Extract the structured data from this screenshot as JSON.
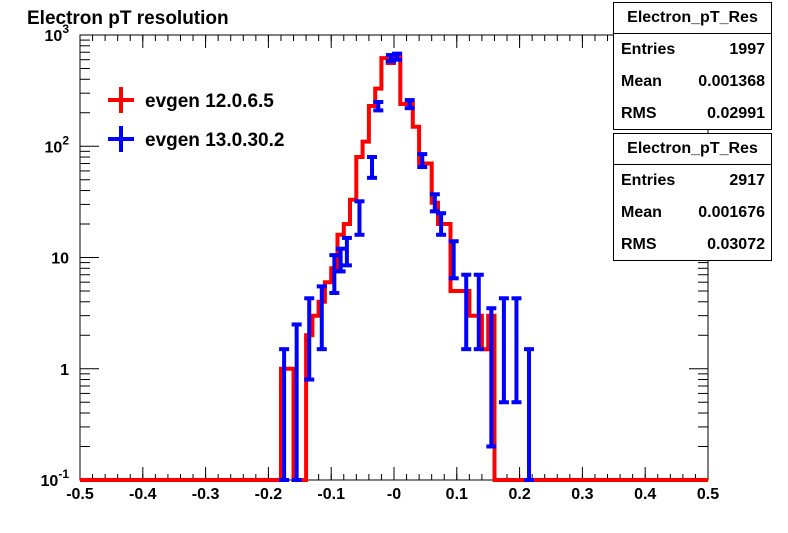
{
  "title": "Electron pT resolution",
  "colors": {
    "red": "#ff0000",
    "blue": "#0000ff",
    "frame": "#000000"
  },
  "stat_boxes": [
    {
      "title": "Electron_pT_Res",
      "rows": [
        {
          "label": "Entries",
          "value": "1997"
        },
        {
          "label": "Mean",
          "value": "0.001368"
        },
        {
          "label": "RMS",
          "value": "0.02991"
        }
      ]
    },
    {
      "title": "Electron_pT_Res",
      "rows": [
        {
          "label": "Entries",
          "value": "2917"
        },
        {
          "label": "Mean",
          "value": "0.001676"
        },
        {
          "label": "RMS",
          "value": "0.03072"
        }
      ]
    }
  ],
  "chart_data": {
    "type": "histogram",
    "title": "Electron pT resolution",
    "xlim": [
      -0.5,
      0.5
    ],
    "ylim": [
      0.1,
      1000
    ],
    "yscale": "log",
    "grid": false,
    "legend_position": "top-left",
    "xticks": [
      {
        "value": -0.5,
        "label": "-0.5"
      },
      {
        "value": -0.4,
        "label": "-0.4"
      },
      {
        "value": -0.3,
        "label": "-0.3"
      },
      {
        "value": -0.2,
        "label": "-0.2"
      },
      {
        "value": -0.1,
        "label": "-0.1"
      },
      {
        "value": 0,
        "label": "-0"
      },
      {
        "value": 0.1,
        "label": "0.1"
      },
      {
        "value": 0.2,
        "label": "0.2"
      },
      {
        "value": 0.3,
        "label": "0.3"
      },
      {
        "value": 0.4,
        "label": "0.4"
      },
      {
        "value": 0.5,
        "label": "0.5"
      }
    ],
    "yticks": [
      {
        "value": 0.1,
        "base": "10",
        "exp": "-1"
      },
      {
        "value": 1,
        "base": "1",
        "exp": ""
      },
      {
        "value": 10,
        "base": "10",
        "exp": ""
      },
      {
        "value": 100,
        "base": "10",
        "exp": "2"
      },
      {
        "value": 1000,
        "base": "10",
        "exp": "3"
      }
    ],
    "series": [
      {
        "name": "evgen 12.0.6.5",
        "color": "#ff0000",
        "style": "step",
        "bins": [
          {
            "lo": -0.5,
            "hi": -0.18,
            "y": 0.1
          },
          {
            "lo": -0.18,
            "hi": -0.16,
            "y": 1
          },
          {
            "lo": -0.16,
            "hi": -0.14,
            "y": 0.1
          },
          {
            "lo": -0.14,
            "hi": -0.13,
            "y": 2
          },
          {
            "lo": -0.13,
            "hi": -0.12,
            "y": 3
          },
          {
            "lo": -0.12,
            "hi": -0.11,
            "y": 4
          },
          {
            "lo": -0.11,
            "hi": -0.1,
            "y": 6
          },
          {
            "lo": -0.1,
            "hi": -0.09,
            "y": 8
          },
          {
            "lo": -0.09,
            "hi": -0.08,
            "y": 16
          },
          {
            "lo": -0.08,
            "hi": -0.07,
            "y": 20
          },
          {
            "lo": -0.07,
            "hi": -0.06,
            "y": 33
          },
          {
            "lo": -0.06,
            "hi": -0.05,
            "y": 80
          },
          {
            "lo": -0.05,
            "hi": -0.04,
            "y": 110
          },
          {
            "lo": -0.04,
            "hi": -0.03,
            "y": 230
          },
          {
            "lo": -0.03,
            "hi": -0.02,
            "y": 330
          },
          {
            "lo": -0.02,
            "hi": -0.01,
            "y": 620
          },
          {
            "lo": -0.01,
            "hi": 0.0,
            "y": 560
          },
          {
            "lo": 0.0,
            "hi": 0.01,
            "y": 630
          },
          {
            "lo": 0.01,
            "hi": 0.02,
            "y": 240
          },
          {
            "lo": 0.02,
            "hi": 0.03,
            "y": 240
          },
          {
            "lo": 0.03,
            "hi": 0.04,
            "y": 150
          },
          {
            "lo": 0.04,
            "hi": 0.05,
            "y": 70
          },
          {
            "lo": 0.05,
            "hi": 0.06,
            "y": 70
          },
          {
            "lo": 0.06,
            "hi": 0.07,
            "y": 31
          },
          {
            "lo": 0.07,
            "hi": 0.08,
            "y": 20
          },
          {
            "lo": 0.08,
            "hi": 0.09,
            "y": 20
          },
          {
            "lo": 0.09,
            "hi": 0.1,
            "y": 5
          },
          {
            "lo": 0.1,
            "hi": 0.11,
            "y": 5
          },
          {
            "lo": 0.11,
            "hi": 0.12,
            "y": 5
          },
          {
            "lo": 0.12,
            "hi": 0.13,
            "y": 3
          },
          {
            "lo": 0.13,
            "hi": 0.14,
            "y": 3
          },
          {
            "lo": 0.14,
            "hi": 0.15,
            "y": 1.5
          },
          {
            "lo": 0.15,
            "hi": 0.16,
            "y": 3
          },
          {
            "lo": 0.16,
            "hi": 0.5,
            "y": 0.1
          }
        ]
      },
      {
        "name": "evgen 13.0.30.2",
        "color": "#0000ff",
        "style": "errorbar",
        "points": [
          {
            "x": -0.175,
            "y": 0.6,
            "lo": 0.1,
            "hi": 1.5
          },
          {
            "x": -0.155,
            "y": 1.0,
            "lo": 0.1,
            "hi": 2.5
          },
          {
            "x": -0.135,
            "y": 1.5,
            "lo": 0.8,
            "hi": 4.3
          },
          {
            "x": -0.115,
            "y": 4,
            "lo": 1.5,
            "hi": 5.5
          },
          {
            "x": -0.095,
            "y": 7,
            "lo": 4.8,
            "hi": 10.5
          },
          {
            "x": -0.085,
            "y": 10,
            "lo": 7.5,
            "hi": 12
          },
          {
            "x": -0.075,
            "y": 15,
            "lo": 8.5,
            "hi": 15
          },
          {
            "x": -0.055,
            "y": 24,
            "lo": 16,
            "hi": 32
          },
          {
            "x": -0.035,
            "y": 65,
            "lo": 52,
            "hi": 80
          },
          {
            "x": -0.025,
            "y": 230,
            "lo": 210,
            "hi": 250
          },
          {
            "x": -0.005,
            "y": 620,
            "lo": 580,
            "hi": 660
          },
          {
            "x": 0.005,
            "y": 640,
            "lo": 600,
            "hi": 680
          },
          {
            "x": 0.025,
            "y": 240,
            "lo": 220,
            "hi": 260
          },
          {
            "x": 0.045,
            "y": 75,
            "lo": 65,
            "hi": 85
          },
          {
            "x": 0.065,
            "y": 31,
            "lo": 26,
            "hi": 37
          },
          {
            "x": 0.075,
            "y": 20,
            "lo": 16,
            "hi": 25
          },
          {
            "x": 0.095,
            "y": 10,
            "lo": 6.5,
            "hi": 14
          },
          {
            "x": 0.115,
            "y": 3.5,
            "lo": 1.5,
            "hi": 7
          },
          {
            "x": 0.135,
            "y": 3.5,
            "lo": 1.5,
            "hi": 7
          },
          {
            "x": 0.155,
            "y": 1.5,
            "lo": 0.2,
            "hi": 3.5
          },
          {
            "x": 0.175,
            "y": 1.5,
            "lo": 0.5,
            "hi": 4.3
          },
          {
            "x": 0.195,
            "y": 1.5,
            "lo": 0.5,
            "hi": 4.3
          },
          {
            "x": 0.215,
            "y": 0.6,
            "lo": 0.1,
            "hi": 1.5
          }
        ]
      }
    ]
  }
}
